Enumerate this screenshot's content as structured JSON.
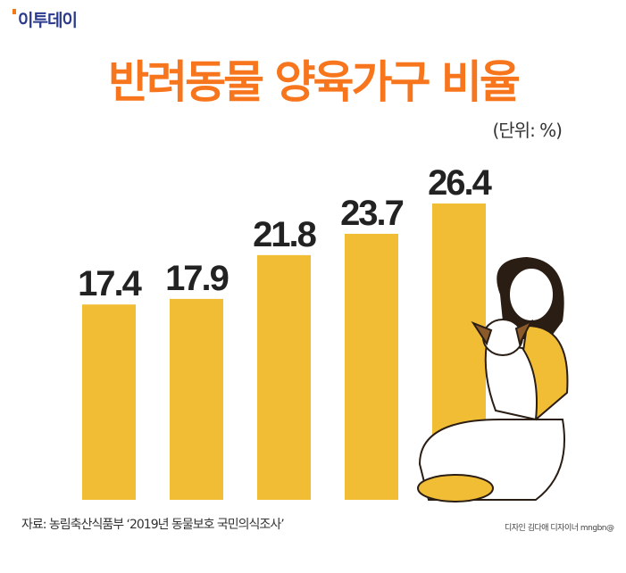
{
  "logo": "이투데이",
  "title": "반려동물 양육가구 비율",
  "unit": "(단위: %)",
  "source": "자료: 농림축산식품부 ‘2019년 동물보호 국민의식조사’",
  "credit": "디자인 김다애 디자이너 mngbn@",
  "colors": {
    "bar": "#f1bd35",
    "title": "#f7761d",
    "logo": "#2b3a8c"
  },
  "chart_data": {
    "type": "bar",
    "title": "반려동물 양육가구 비율",
    "ylabel": "%",
    "categories": [
      "",
      "",
      "",
      "",
      ""
    ],
    "values": [
      17.4,
      17.9,
      21.8,
      23.7,
      26.4
    ],
    "labels": [
      "17.4",
      "17.9",
      "21.8",
      "23.7",
      "26.4"
    ],
    "ylim": [
      0,
      26.4
    ],
    "grid": false
  }
}
